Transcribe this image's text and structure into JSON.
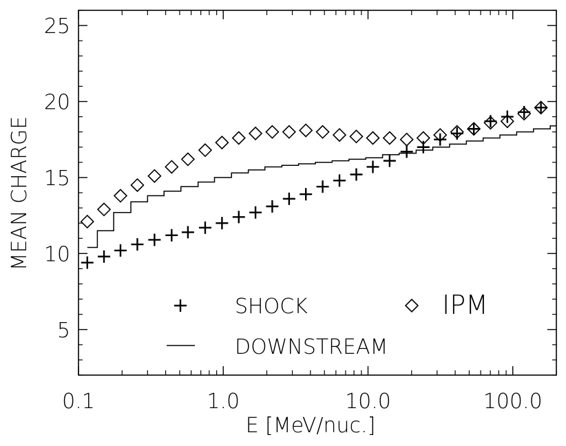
{
  "chart_data": {
    "type": "scatter",
    "title": "",
    "xlabel": "E [MeV/nuc.]",
    "ylabel": "MEAN CHARGE",
    "xscale": "log",
    "xlim": [
      0.1,
      200
    ],
    "ylim": [
      2,
      26
    ],
    "x_ticks": [
      0.1,
      1.0,
      10.0,
      100.0
    ],
    "x_tick_labels": [
      "0.1",
      "1.0",
      "10.0",
      "100.0"
    ],
    "y_ticks": [
      5,
      10,
      15,
      20,
      25
    ],
    "y_tick_labels": [
      "5",
      "10",
      "15",
      "20",
      "25"
    ],
    "grid": false,
    "legend_position": "bottom",
    "series": [
      {
        "name": "SHOCK",
        "marker": "plus",
        "x": [
          0.115,
          0.15,
          0.195,
          0.255,
          0.335,
          0.44,
          0.57,
          0.75,
          0.98,
          1.28,
          1.67,
          2.18,
          2.85,
          3.72,
          4.86,
          6.35,
          8.3,
          10.8,
          14.1,
          18.5,
          24.1,
          31.5,
          41.2,
          53.8,
          70.2,
          91.7,
          119.8,
          156.5
        ],
        "y": [
          9.4,
          9.8,
          10.2,
          10.6,
          10.9,
          11.2,
          11.4,
          11.7,
          12.0,
          12.4,
          12.7,
          13.1,
          13.6,
          13.9,
          14.4,
          14.8,
          15.2,
          15.7,
          16.1,
          16.7,
          17.0,
          17.5,
          17.9,
          18.2,
          18.7,
          19.0,
          19.3,
          19.6
        ]
      },
      {
        "name": "IPM",
        "marker": "diamond",
        "x": [
          0.115,
          0.15,
          0.195,
          0.255,
          0.335,
          0.44,
          0.57,
          0.75,
          0.98,
          1.28,
          1.67,
          2.18,
          2.85,
          3.72,
          4.86,
          6.35,
          8.3,
          10.8,
          14.1,
          18.5,
          24.1,
          31.5,
          41.2,
          53.8,
          70.2,
          91.7,
          119.8,
          156.5
        ],
        "y": [
          12.1,
          12.9,
          13.8,
          14.5,
          15.1,
          15.7,
          16.2,
          16.8,
          17.3,
          17.6,
          17.9,
          18.0,
          18.0,
          18.1,
          18.0,
          17.8,
          17.7,
          17.6,
          17.6,
          17.5,
          17.6,
          17.8,
          18.0,
          18.2,
          18.6,
          18.7,
          19.2,
          19.6
        ]
      },
      {
        "name": "DOWNSTREAM",
        "marker": "line",
        "style": "step",
        "x": [
          0.115,
          0.135,
          0.175,
          0.23,
          0.3,
          0.39,
          0.51,
          0.67,
          0.87,
          1.14,
          1.49,
          1.94,
          2.54,
          3.31,
          4.33,
          5.65,
          7.38,
          9.64,
          12.6,
          16.4,
          21.5,
          28.0,
          36.6,
          47.8,
          62.4,
          81.5,
          106.4,
          139.0,
          181.5,
          200
        ],
        "y": [
          10.4,
          11.5,
          12.7,
          13.4,
          13.8,
          14.1,
          14.4,
          14.7,
          15.0,
          15.3,
          15.5,
          15.7,
          15.8,
          15.9,
          16.0,
          16.1,
          16.2,
          16.3,
          16.5,
          16.6,
          16.8,
          17.0,
          17.2,
          17.4,
          17.6,
          17.8,
          18.0,
          18.2,
          18.4,
          18.4
        ]
      }
    ]
  },
  "legend": {
    "shock_label": "SHOCK",
    "ipm_label": "IPM",
    "downstream_label": "DOWNSTREAM"
  }
}
